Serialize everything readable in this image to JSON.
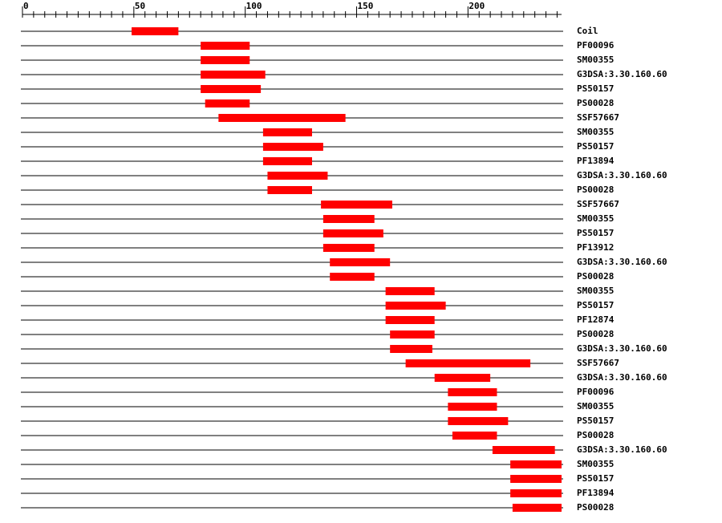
{
  "chart_data": {
    "type": "range",
    "categories": [
      "Coil",
      "PF00096",
      "SM00355",
      "G3DSA:3.30.160.60",
      "PS50157",
      "PS00028",
      "SSF57667",
      "SM00355",
      "PS50157",
      "PF13894",
      "G3DSA:3.30.160.60",
      "PS00028",
      "SSF57667",
      "SM00355",
      "PS50157",
      "PF13912",
      "G3DSA:3.30.160.60",
      "PS00028",
      "SM00355",
      "PS50157",
      "PF12874",
      "PS00028",
      "G3DSA:3.30.160.60",
      "SSF57667",
      "G3DSA:3.30.160.60",
      "PF00096",
      "SM00355",
      "PS50157",
      "PS00028",
      "G3DSA:3.30.160.60",
      "SM00355",
      "PS50157",
      "PF13894",
      "PS00028"
    ],
    "starts": [
      49,
      80,
      80,
      80,
      80,
      82,
      88,
      108,
      108,
      108,
      110,
      110,
      134,
      135,
      135,
      135,
      138,
      138,
      163,
      163,
      163,
      165,
      165,
      172,
      185,
      191,
      191,
      191,
      193,
      211,
      219,
      219,
      219,
      220
    ],
    "ends": [
      70,
      102,
      102,
      109,
      107,
      102,
      145,
      130,
      135,
      130,
      137,
      130,
      166,
      158,
      162,
      158,
      165,
      158,
      185,
      190,
      185,
      185,
      184,
      228,
      210,
      213,
      213,
      218,
      213,
      239,
      242,
      242,
      242,
      242
    ],
    "color": "#ff0000",
    "xlim": [
      0,
      242
    ],
    "xticks": [
      0,
      50,
      100,
      150,
      200
    ],
    "xminorticks": [
      5,
      10,
      15,
      20,
      25,
      30,
      35,
      40,
      45,
      55,
      60,
      65,
      70,
      75,
      80,
      85,
      90,
      95,
      105,
      110,
      115,
      120,
      125,
      130,
      135,
      140,
      145,
      155,
      160,
      165,
      170,
      175,
      180,
      185,
      190,
      195,
      205,
      210,
      215,
      220,
      225,
      230,
      235,
      240
    ]
  }
}
